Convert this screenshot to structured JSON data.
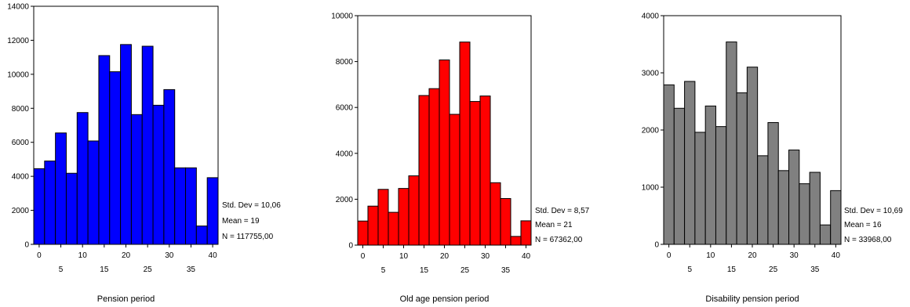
{
  "chart_data": [
    {
      "type": "bar",
      "title": "",
      "xlabel": "Pension period",
      "ylabel": "",
      "color": "#0000ff",
      "ylim": [
        0,
        14000
      ],
      "yticks": [
        0,
        2000,
        4000,
        6000,
        8000,
        10000,
        12000,
        14000
      ],
      "xlim": [
        -1.25,
        41.25
      ],
      "xticks_upper": [
        0,
        10,
        20,
        30,
        40
      ],
      "xticks_lower": [
        5,
        15,
        25,
        35
      ],
      "bin_centers": [
        0,
        2.5,
        5,
        7.5,
        10,
        12.5,
        15,
        17.5,
        20,
        22.5,
        25,
        27.5,
        30,
        32.5,
        35,
        37.5,
        40
      ],
      "values": [
        4450,
        4900,
        6550,
        4180,
        7750,
        6080,
        11100,
        10150,
        11750,
        7630,
        11650,
        8180,
        9100,
        4500,
        4500,
        1080,
        3920
      ],
      "stats": [
        "Std. Dev = 10,06",
        "Mean = 19",
        "N = 117755,00"
      ]
    },
    {
      "type": "bar",
      "title": "",
      "xlabel": "Old age pension period",
      "ylabel": "",
      "color": "#ff0000",
      "ylim": [
        0,
        10000
      ],
      "yticks": [
        0,
        2000,
        4000,
        6000,
        8000,
        10000
      ],
      "xlim": [
        -1.25,
        41.25
      ],
      "xticks_upper": [
        0,
        10,
        20,
        30,
        40
      ],
      "xticks_lower": [
        5,
        15,
        25,
        35
      ],
      "bin_centers": [
        0,
        2.5,
        5,
        7.5,
        10,
        12.5,
        15,
        17.5,
        20,
        22.5,
        25,
        27.5,
        30,
        32.5,
        35,
        37.5,
        40
      ],
      "values": [
        1050,
        1700,
        2430,
        1430,
        2470,
        3020,
        6520,
        6820,
        8070,
        5700,
        8850,
        6260,
        6500,
        2720,
        2030,
        380,
        1060
      ],
      "stats": [
        "Std. Dev = 8,57",
        "Mean = 21",
        "N = 67362,00"
      ]
    },
    {
      "type": "bar",
      "title": "",
      "xlabel": "Disability pension period",
      "ylabel": "",
      "color": "#808080",
      "ylim": [
        0,
        4000
      ],
      "yticks": [
        0,
        1000,
        2000,
        3000,
        4000
      ],
      "xlim": [
        -1.25,
        41.25
      ],
      "xticks_upper": [
        0,
        10,
        20,
        30,
        40
      ],
      "xticks_lower": [
        5,
        15,
        25,
        35
      ],
      "bin_centers": [
        0,
        2.5,
        5,
        7.5,
        10,
        12.5,
        15,
        17.5,
        20,
        22.5,
        25,
        27.5,
        30,
        32.5,
        35,
        37.5,
        40
      ],
      "values": [
        2790,
        2380,
        2850,
        1960,
        2420,
        2060,
        3540,
        2650,
        3100,
        1550,
        2130,
        1290,
        1650,
        1060,
        1260,
        340,
        940
      ],
      "stats": [
        "Std. Dev = 10,69",
        "Mean = 16",
        "N = 33968,00"
      ]
    }
  ]
}
